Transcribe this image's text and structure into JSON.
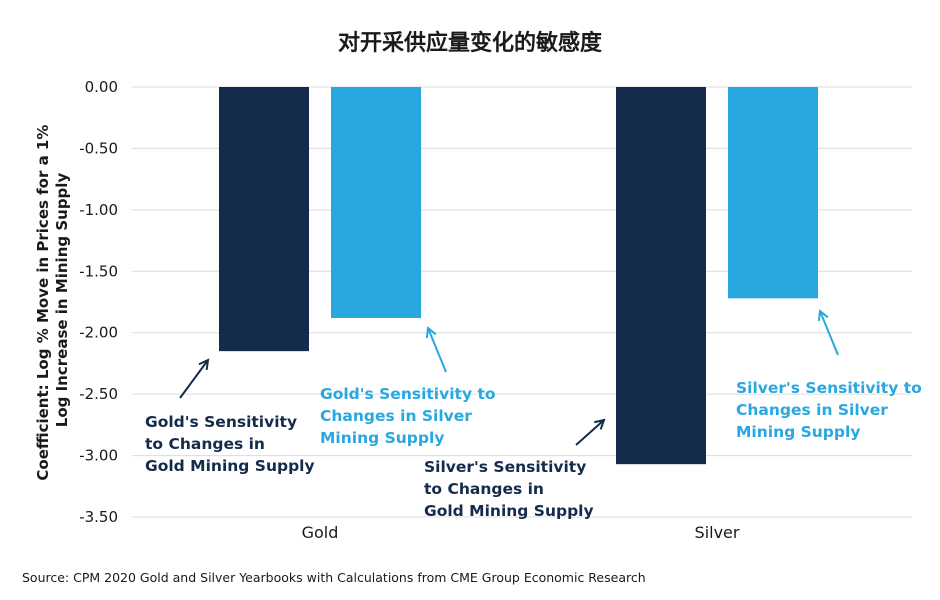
{
  "chart_data": {
    "type": "bar",
    "title": "对开采供应量变化的敏感度",
    "ylabel_lines": [
      "Coefficient:  Log % Move in Prices for a 1%",
      "Log Increase in Mining Supply"
    ],
    "ylim": [
      -3.5,
      0
    ],
    "yticks": [
      0,
      -0.5,
      -1,
      -1.5,
      -2,
      -2.5,
      -3,
      -3.5
    ],
    "ytick_labels": [
      "0.00",
      "-0.50",
      "-1.00",
      "-1.50",
      "-2.00",
      "-2.50",
      "-3.00",
      "-3.50"
    ],
    "grid": true,
    "categories": [
      "Gold",
      "Silver"
    ],
    "series": [
      {
        "color": "#142b4b",
        "values": [
          -2.15,
          -3.07
        ]
      },
      {
        "color": "#29a8e0",
        "values": [
          -1.88,
          -1.72
        ]
      }
    ],
    "annotations": [
      {
        "lines": [
          "Gold's Sensitivity",
          "to Changes in",
          "Gold Mining Supply"
        ],
        "color": "#142b4b"
      },
      {
        "lines": [
          "Gold's Sensitivity to",
          "Changes in Silver",
          "Mining Supply"
        ],
        "color": "#29a8e0"
      },
      {
        "lines": [
          "Silver's Sensitivity",
          "to Changes in",
          "Gold Mining Supply"
        ],
        "color": "#142b4b"
      },
      {
        "lines": [
          "Silver's Sensitivity to",
          "Changes in Silver",
          "Mining Supply"
        ],
        "color": "#29a8e0"
      }
    ],
    "source": "Source: CPM 2020 Gold and Silver Yearbooks with Calculations from CME Group Economic Research"
  }
}
